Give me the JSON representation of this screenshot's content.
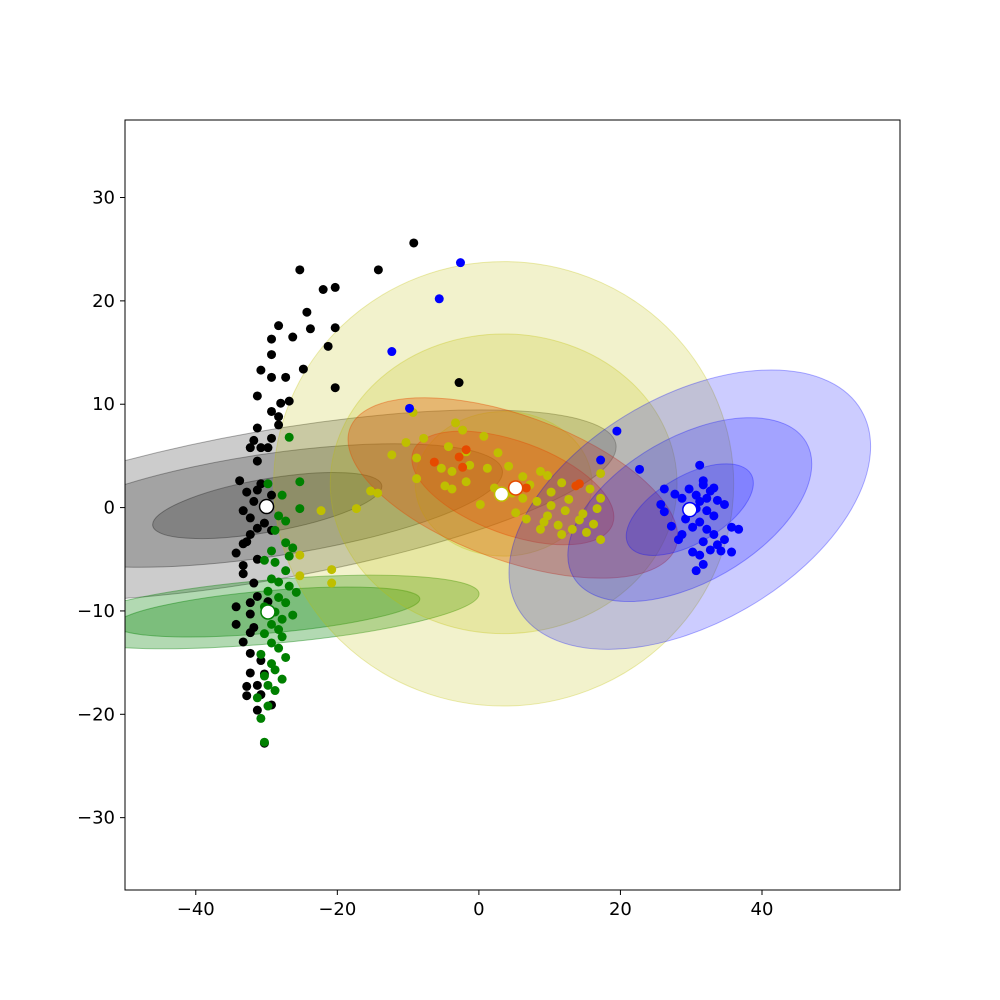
{
  "chart_data": {
    "type": "scatter",
    "title": "",
    "xlabel": "",
    "ylabel": "",
    "xlim": [
      -50,
      59.5
    ],
    "ylim": [
      -37,
      37.5
    ],
    "grid": false,
    "x_ticks": [
      {
        "value": -40,
        "label": "−40"
      },
      {
        "value": -20,
        "label": "−20"
      },
      {
        "value": 0,
        "label": "0"
      },
      {
        "value": 20,
        "label": "20"
      },
      {
        "value": 40,
        "label": "40"
      }
    ],
    "y_ticks": [
      {
        "value": 30,
        "label": "30"
      },
      {
        "value": 20,
        "label": "20"
      },
      {
        "value": 10,
        "label": "10"
      },
      {
        "value": 0,
        "label": "0"
      },
      {
        "value": -10,
        "label": "−10"
      },
      {
        "value": -20,
        "label": "−20"
      },
      {
        "value": -30,
        "label": "−30"
      }
    ],
    "series": [
      {
        "color": "#000000",
        "mean": [
          -30,
          0.1
        ],
        "points": [
          [
            -9.2,
            25.6
          ],
          [
            -14.2,
            23
          ],
          [
            -25.3,
            23
          ],
          [
            -20.3,
            21.3
          ],
          [
            -22,
            21.1
          ],
          [
            -24.3,
            18.9
          ],
          [
            -28.3,
            17.6
          ],
          [
            -20.3,
            17.4
          ],
          [
            -23.8,
            17.3
          ],
          [
            -26.3,
            16.5
          ],
          [
            -29.3,
            16.3
          ],
          [
            -21.3,
            15.6
          ],
          [
            -29.3,
            14.8
          ],
          [
            -24.8,
            13.4
          ],
          [
            -30.8,
            13.3
          ],
          [
            -27.3,
            12.6
          ],
          [
            -29.3,
            12.6
          ],
          [
            -2.8,
            12.1
          ],
          [
            -20.3,
            11.6
          ],
          [
            -31.3,
            10.8
          ],
          [
            -28,
            10.1
          ],
          [
            -26.8,
            10.3
          ],
          [
            -29.3,
            9.3
          ],
          [
            -28.3,
            8.8
          ],
          [
            -28.3,
            8
          ],
          [
            -31.3,
            7.7
          ],
          [
            -32.3,
            5.8
          ],
          [
            -30.8,
            5.8
          ],
          [
            -31.8,
            6.5
          ],
          [
            -29.8,
            5.8
          ],
          [
            -29.3,
            6.7
          ],
          [
            -31.3,
            4.5
          ],
          [
            -33.8,
            2.6
          ],
          [
            -30.8,
            2.3
          ],
          [
            -31.3,
            1.7
          ],
          [
            -32.8,
            1.5
          ],
          [
            -29.3,
            1.2
          ],
          [
            -31.8,
            0.6
          ],
          [
            -32.3,
            -1
          ],
          [
            -30.3,
            -1.5
          ],
          [
            -33.3,
            -0.3
          ],
          [
            -31.3,
            -2
          ],
          [
            -29.3,
            -2.2
          ],
          [
            -32.3,
            -2.6
          ],
          [
            -32.8,
            -3.3
          ],
          [
            -33.3,
            -3.5
          ],
          [
            -34.3,
            -4.4
          ],
          [
            -31.3,
            -5
          ],
          [
            -33.3,
            -6.4
          ],
          [
            -33.3,
            -5.6
          ],
          [
            -31.8,
            -7.3
          ],
          [
            -31.3,
            -8.6
          ],
          [
            -32.3,
            -9.2
          ],
          [
            -34.3,
            -9.6
          ],
          [
            -29.8,
            -9.1
          ],
          [
            -32.3,
            -10.3
          ],
          [
            -31.8,
            -11.6
          ],
          [
            -34.3,
            -11.3
          ],
          [
            -32.3,
            -12.1
          ],
          [
            -33.3,
            -13
          ],
          [
            -32.3,
            -14.1
          ],
          [
            -30.8,
            -14.8
          ],
          [
            -30.3,
            -16.1
          ],
          [
            -32.3,
            -16
          ],
          [
            -31.3,
            -17.2
          ],
          [
            -32.8,
            -17.3
          ],
          [
            -30.8,
            -18.1
          ],
          [
            -32.8,
            -18.2
          ],
          [
            -29.3,
            -19.1
          ],
          [
            -31.3,
            -19.6
          ],
          [
            -30.3,
            -22.8
          ]
        ],
        "ellipses": [
          {
            "center": [
              -29.9,
              0.2
            ],
            "width": 21,
            "height": 68.5,
            "angle": 80,
            "opacity": 0.2
          },
          {
            "center": [
              -29.9,
              0.2
            ],
            "width": 14.5,
            "height": 46,
            "angle": 81.5,
            "opacity": 0.2
          },
          {
            "center": [
              -29.9,
              0.2
            ],
            "width": 7.5,
            "height": 22.5,
            "angle": 80,
            "opacity": 0.2
          }
        ]
      },
      {
        "color": "#008000",
        "mean": [
          -29.8,
          -10.1
        ],
        "points": [
          [
            -27.8,
            1.2
          ],
          [
            -26.8,
            6.8
          ],
          [
            -25.3,
            2.5
          ],
          [
            -28.3,
            -0.8
          ],
          [
            -27.3,
            -1.3
          ],
          [
            -28.8,
            -2.2
          ],
          [
            -27.3,
            -3.4
          ],
          [
            -29.3,
            -4.2
          ],
          [
            -26.8,
            -4.7
          ],
          [
            -28.8,
            -5.3
          ],
          [
            -27.3,
            -6.1
          ],
          [
            -29.3,
            -6.9
          ],
          [
            -28.3,
            -7.2
          ],
          [
            -26.8,
            -7.6
          ],
          [
            -29.8,
            -8.1
          ],
          [
            -28.3,
            -8.7
          ],
          [
            -27.3,
            -9.2
          ],
          [
            -30.3,
            -9.6
          ],
          [
            -28.8,
            -10.1
          ],
          [
            -27.8,
            -10.8
          ],
          [
            -29.3,
            -11.3
          ],
          [
            -28.3,
            -11.8
          ],
          [
            -30.3,
            -12.2
          ],
          [
            -27.8,
            -12.5
          ],
          [
            -29.3,
            -13.1
          ],
          [
            -28.3,
            -13.6
          ],
          [
            -30.8,
            -14.2
          ],
          [
            -27.3,
            -14.5
          ],
          [
            -29.3,
            -15.1
          ],
          [
            -28.8,
            -15.7
          ],
          [
            -30.3,
            -16.3
          ],
          [
            -27.8,
            -16.6
          ],
          [
            -29.8,
            -17.2
          ],
          [
            -28.8,
            -17.7
          ],
          [
            -31.3,
            -18.4
          ],
          [
            -29.8,
            -19.2
          ],
          [
            -30.8,
            -20.4
          ],
          [
            -30.3,
            -22.7
          ],
          [
            -26.3,
            -10.4
          ],
          [
            -25.8,
            -8.2
          ],
          [
            -26.3,
            -3.9
          ],
          [
            -25.3,
            -0.1
          ],
          [
            -29.8,
            2.3
          ],
          [
            -30.3,
            -5.1
          ]
        ],
        "ellipses": [
          {
            "center": [
              -29.8,
              -10.1
            ],
            "width": 9,
            "height": 41,
            "angle": 85,
            "opacity": 0.3
          },
          {
            "center": [
              -29.8,
              -10.1
            ],
            "width": 6,
            "height": 29.5,
            "angle": 85,
            "opacity": 0.3
          }
        ]
      },
      {
        "color": "#bfbf00",
        "mean": [
          3.2,
          1.3
        ],
        "points": [
          [
            -9.3,
            9.2
          ],
          [
            -3.3,
            8.2
          ],
          [
            -2.3,
            7.5
          ],
          [
            0.7,
            6.9
          ],
          [
            -7.8,
            6.7
          ],
          [
            -10.3,
            6.3
          ],
          [
            -4.3,
            5.9
          ],
          [
            -1.8,
            5.4
          ],
          [
            2.7,
            5.3
          ],
          [
            -2.8,
            4.9
          ],
          [
            -12.3,
            5.1
          ],
          [
            -8.8,
            4.8
          ],
          [
            -5.3,
            3.8
          ],
          [
            -3.8,
            3.5
          ],
          [
            -1.3,
            4.1
          ],
          [
            1.2,
            3.8
          ],
          [
            4.2,
            4
          ],
          [
            8.7,
            3.5
          ],
          [
            9.7,
            3.1
          ],
          [
            11.7,
            2.4
          ],
          [
            13.7,
            2.1
          ],
          [
            15.7,
            1.8
          ],
          [
            17.2,
            3.3
          ],
          [
            -15.3,
            1.6
          ],
          [
            -14.3,
            1.4
          ],
          [
            -17.3,
            -0.1
          ],
          [
            -22.3,
            -0.3
          ],
          [
            -25.3,
            -4.6
          ],
          [
            -25.3,
            -6.6
          ],
          [
            -20.8,
            -6
          ],
          [
            -20.8,
            -7.3
          ],
          [
            -8.8,
            2.8
          ],
          [
            -4.8,
            2.1
          ],
          [
            -3.8,
            1.8
          ],
          [
            -1.8,
            2.5
          ],
          [
            2.2,
            1.9
          ],
          [
            4.7,
            1.4
          ],
          [
            6.2,
            0.9
          ],
          [
            8.2,
            0.6
          ],
          [
            10.2,
            0.2
          ],
          [
            12.2,
            -0.3
          ],
          [
            14.7,
            -0.6
          ],
          [
            16.7,
            -0.1
          ],
          [
            17.2,
            0.9
          ],
          [
            6.7,
            -1.1
          ],
          [
            9.2,
            -1.4
          ],
          [
            11.2,
            -1.7
          ],
          [
            13.2,
            -2.1
          ],
          [
            15.2,
            -2.4
          ],
          [
            17.2,
            -3.1
          ],
          [
            0.2,
            0.3
          ],
          [
            5.2,
            -0.5
          ],
          [
            11.7,
            -2.6
          ],
          [
            14.2,
            -1.2
          ],
          [
            16.2,
            -1.6
          ],
          [
            9.7,
            -0.8
          ],
          [
            7.2,
            2.2
          ],
          [
            12.7,
            0.8
          ],
          [
            10.2,
            1.5
          ],
          [
            6.2,
            3
          ],
          [
            8.7,
            -2.1
          ]
        ],
        "ellipses": [
          {
            "center": [
              3.5,
              2.3
            ],
            "width": 65,
            "height": 43,
            "angle": 0,
            "opacity": 0.2
          },
          {
            "center": [
              3.5,
              2.3
            ],
            "width": 49,
            "height": 29,
            "angle": 0,
            "opacity": 0.2
          },
          {
            "center": [
              3.5,
              2.3
            ],
            "width": 25,
            "height": 14,
            "angle": 0,
            "opacity": 0.2
          }
        ]
      },
      {
        "color": "#e64a00",
        "mean": [
          5.2,
          1.9
        ],
        "points": [
          [
            -2.8,
            4.9
          ],
          [
            -1.8,
            5.6
          ],
          [
            -2.3,
            3.9
          ],
          [
            -6.3,
            4.4
          ],
          [
            13.7,
            2.1
          ],
          [
            14.2,
            2.3
          ],
          [
            3.2,
            1.4
          ],
          [
            6.7,
            1.9
          ]
        ],
        "ellipses": [
          {
            "center": [
              4.8,
              1.9
            ],
            "width": 49,
            "height": 14,
            "angle": 20,
            "opacity": 0.3
          },
          {
            "center": [
              4.8,
              1.9
            ],
            "width": 30,
            "height": 9,
            "angle": 20,
            "opacity": 0.3
          }
        ]
      },
      {
        "color": "#0000ff",
        "mean": [
          29.8,
          -0.2
        ],
        "points": [
          [
            -2.6,
            23.7
          ],
          [
            -5.6,
            20.2
          ],
          [
            -12.3,
            15.1
          ],
          [
            -9.8,
            9.6
          ],
          [
            19.5,
            7.4
          ],
          [
            17.2,
            4.6
          ],
          [
            22.7,
            3.7
          ],
          [
            31.2,
            4.1
          ],
          [
            26.2,
            1.8
          ],
          [
            27.7,
            1.3
          ],
          [
            28.7,
            0.9
          ],
          [
            29.7,
            1.8
          ],
          [
            30.7,
            1.2
          ],
          [
            31.7,
            2.2
          ],
          [
            32.7,
            1.6
          ],
          [
            33.7,
            0.7
          ],
          [
            34.7,
            0.3
          ],
          [
            31.2,
            0.6
          ],
          [
            32.2,
            -0.3
          ],
          [
            33.2,
            -0.8
          ],
          [
            30.7,
            -0.1
          ],
          [
            29.2,
            -1.1
          ],
          [
            30.2,
            -1.9
          ],
          [
            31.2,
            -1.4
          ],
          [
            32.2,
            -2.1
          ],
          [
            33.2,
            -2.6
          ],
          [
            34.7,
            -3.1
          ],
          [
            35.7,
            -1.9
          ],
          [
            36.7,
            -2.1
          ],
          [
            31.7,
            -3.3
          ],
          [
            32.7,
            -4.1
          ],
          [
            33.7,
            -3.6
          ],
          [
            34.2,
            -4.2
          ],
          [
            35.7,
            -4.3
          ],
          [
            31.2,
            -4.6
          ],
          [
            30.2,
            -4.3
          ],
          [
            31.7,
            -5.5
          ],
          [
            30.7,
            -6.1
          ],
          [
            28.2,
            -3.1
          ],
          [
            27.2,
            -1.8
          ],
          [
            26.2,
            -0.4
          ],
          [
            25.7,
            0.3
          ],
          [
            32.2,
            0.9
          ],
          [
            33.2,
            1.9
          ],
          [
            31.7,
            2.6
          ],
          [
            28.7,
            -2.6
          ]
        ],
        "ellipses": [
          {
            "center": [
              29.8,
              -0.2
            ],
            "width": 56,
            "height": 22,
            "angle": -30,
            "opacity": 0.2
          },
          {
            "center": [
              29.8,
              -0.2
            ],
            "width": 38,
            "height": 14,
            "angle": -30,
            "opacity": 0.2
          },
          {
            "center": [
              29.8,
              -0.2
            ],
            "width": 20,
            "height": 6.5,
            "angle": -30,
            "opacity": 0.2
          }
        ]
      }
    ]
  }
}
